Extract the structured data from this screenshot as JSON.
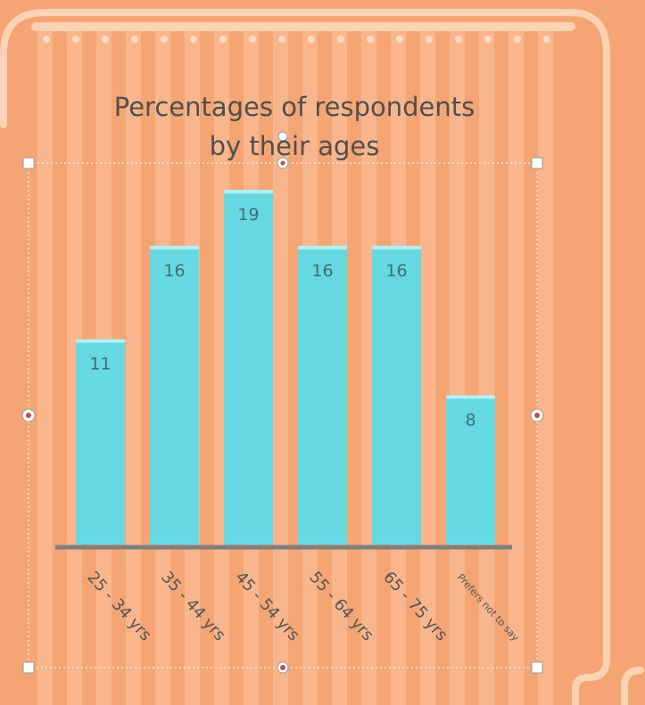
{
  "colors": {
    "background": "#f5a574",
    "stripe_light": "#fbc4a0",
    "frame": "#fbd2b3",
    "bar": "#66d8e2",
    "bar_top": "#b3f0f4",
    "label_text": "#3f6f74",
    "axis": "#7f7f7f",
    "title_text": "#4f4f4f",
    "tick_text": "#555555",
    "handle_dot": "#c0504d"
  },
  "chart_data": {
    "type": "bar",
    "title_lines": [
      "Percentages of respondents",
      "by their ages"
    ],
    "categories": [
      "25 - 34 yrs",
      "35 - 44 yrs",
      "45 - 54 yrs",
      "55 - 64 yrs",
      "65 - 75 yrs",
      "Prefers not to say"
    ],
    "values": [
      11,
      16,
      19,
      16,
      16,
      8
    ],
    "ylim": [
      0,
      20
    ],
    "grid": false,
    "legend": "none",
    "xlabel": "",
    "ylabel": ""
  }
}
